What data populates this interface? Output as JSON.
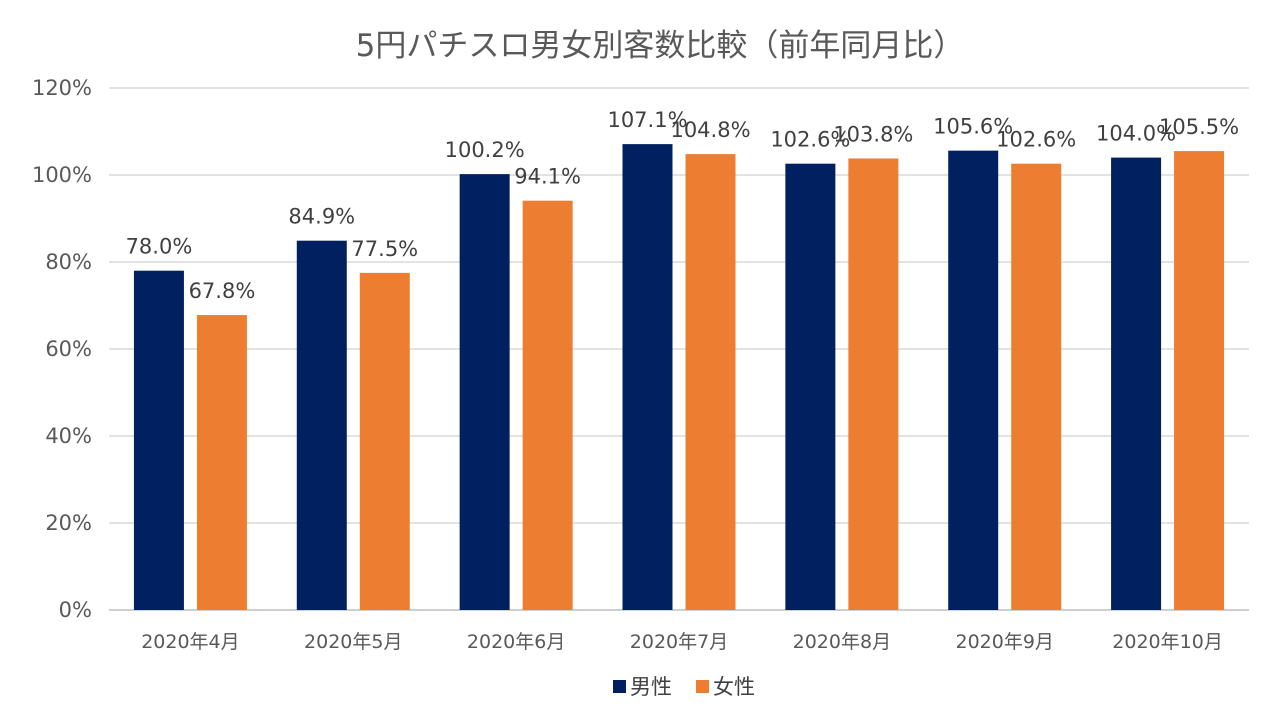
{
  "chart_data": {
    "type": "bar",
    "title": "5円パチスロ男女別客数比較（前年同月比）",
    "categories": [
      "2020年4月",
      "2020年5月",
      "2020年6月",
      "2020年7月",
      "2020年8月",
      "2020年9月",
      "2020年10月"
    ],
    "series": [
      {
        "name": "男性",
        "color": "#002060",
        "values": [
          78.0,
          84.9,
          100.2,
          107.1,
          102.6,
          105.6,
          104.0
        ],
        "labels": [
          "78.0%",
          "84.9%",
          "100.2%",
          "107.1%",
          "102.6%",
          "105.6%",
          "104.0%"
        ]
      },
      {
        "name": "女性",
        "color": "#ed7d31",
        "values": [
          67.8,
          77.5,
          94.1,
          104.8,
          103.8,
          102.6,
          105.5
        ],
        "labels": [
          "67.8%",
          "77.5%",
          "94.1%",
          "104.8%",
          "103.8%",
          "102.6%",
          "105.5%"
        ]
      }
    ],
    "ylim": [
      0,
      120
    ],
    "yticks": [
      0,
      20,
      40,
      60,
      80,
      100,
      120
    ],
    "ytick_labels": [
      "0%",
      "20%",
      "40%",
      "60%",
      "80%",
      "100%",
      "120%"
    ],
    "grid": true,
    "legend": "bottom"
  }
}
